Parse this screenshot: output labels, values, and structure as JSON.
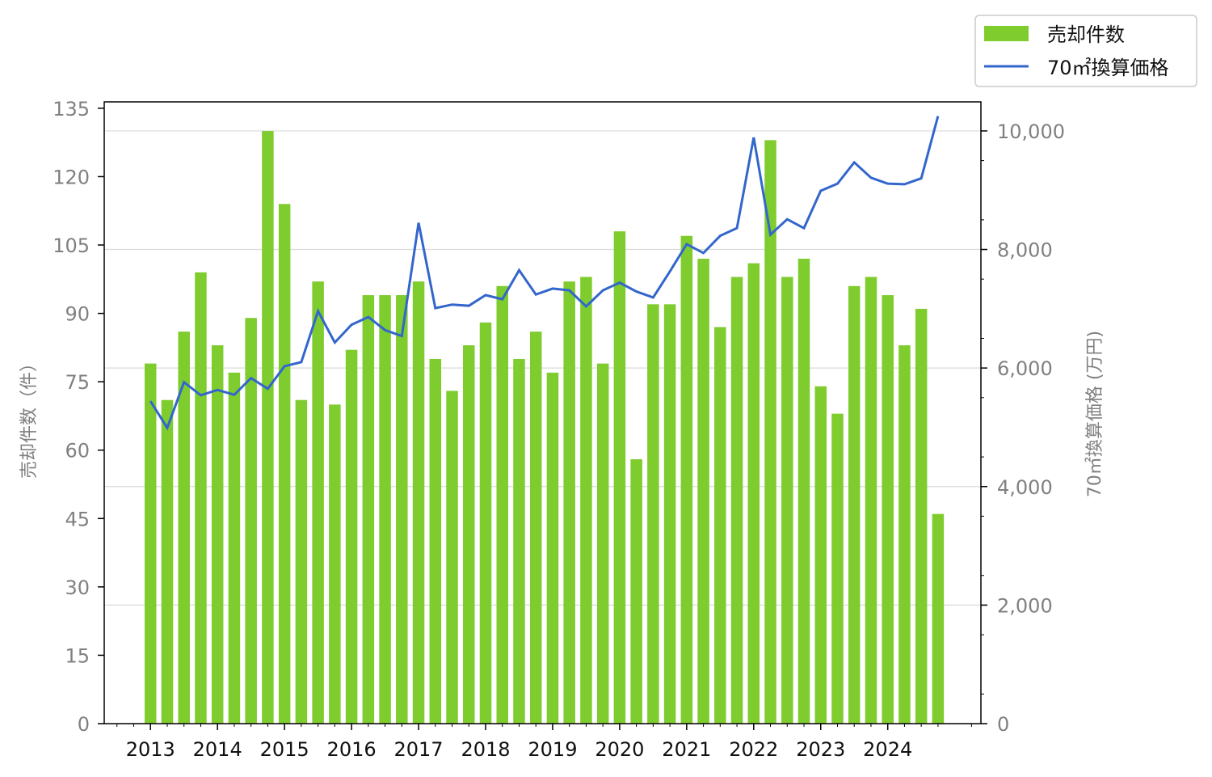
{
  "chart_data": {
    "type": "bar+line",
    "title": "",
    "xlabel": "",
    "ylabel_left": "売却件数（件）",
    "ylabel_right": "70㎡換算価格 (万円)",
    "x_ticks": [
      "2013",
      "2014",
      "2015",
      "2016",
      "2017",
      "2018",
      "2019",
      "2020",
      "2021",
      "2022",
      "2023",
      "2024"
    ],
    "x_start_year": 2013,
    "period": "quarterly",
    "xlim": [
      2012.31,
      2025.39
    ],
    "ylim_left": [
      0,
      136.4
    ],
    "ylim_right": [
      0,
      10490
    ],
    "left_ticks": [
      0,
      15,
      30,
      45,
      60,
      75,
      90,
      105,
      120,
      135
    ],
    "right_ticks": [
      0,
      2000,
      4000,
      6000,
      8000,
      10000
    ],
    "right_tick_labels": [
      "0",
      "2,000",
      "4,000",
      "6,000",
      "8,000",
      "10,000"
    ],
    "grid": "horizontal (right axis)",
    "legend_placement": "top-right, outside",
    "series": [
      {
        "name": "売却件数",
        "type": "bar",
        "axis": "left",
        "color": "#7fcc2f",
        "values": [
          79,
          71,
          86,
          99,
          83,
          77,
          89,
          130,
          114,
          71,
          97,
          70,
          82,
          94,
          94,
          94,
          97,
          80,
          73,
          83,
          88,
          96,
          80,
          86,
          77,
          97,
          98,
          79,
          108,
          58,
          92,
          92,
          107,
          102,
          87,
          98,
          101,
          128,
          98,
          102,
          74,
          68,
          96,
          98,
          94,
          83,
          91,
          46
        ]
      },
      {
        "name": "70㎡換算価格",
        "type": "line",
        "axis": "right",
        "color": "#3366cc",
        "values": [
          5440,
          4990,
          5760,
          5540,
          5630,
          5550,
          5830,
          5650,
          6030,
          6100,
          6960,
          6430,
          6730,
          6860,
          6640,
          6540,
          8450,
          7010,
          7070,
          7050,
          7230,
          7160,
          7650,
          7240,
          7340,
          7310,
          7040,
          7310,
          7440,
          7290,
          7190,
          7630,
          8090,
          7940,
          8230,
          8360,
          9890,
          8250,
          8510,
          8360,
          8990,
          9110,
          9470,
          9210,
          9110,
          9100,
          9200,
          10250
        ]
      }
    ]
  }
}
